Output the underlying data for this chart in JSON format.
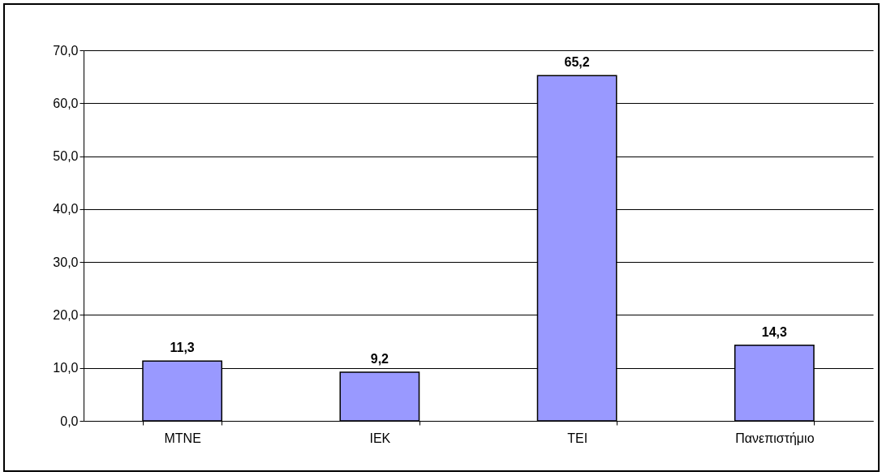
{
  "chart_data": {
    "type": "bar",
    "categories": [
      "ΜΤΝΕ",
      "ΙΕΚ",
      "ΤΕΙ",
      "Πανεπιστήμιο"
    ],
    "values": [
      11.3,
      9.2,
      65.2,
      14.3
    ],
    "value_labels": [
      "11,3",
      "9,2",
      "65,2",
      "14,3"
    ],
    "color": "#9999ff",
    "ylim": [
      0,
      70
    ],
    "yticks": [
      {
        "value": 0,
        "label": "0,0"
      },
      {
        "value": 10,
        "label": "10,0"
      },
      {
        "value": 20,
        "label": "20,0"
      },
      {
        "value": 30,
        "label": "30,0"
      },
      {
        "value": 40,
        "label": "40,0"
      },
      {
        "value": 50,
        "label": "50,0"
      },
      {
        "value": 60,
        "label": "60,0"
      },
      {
        "value": 70,
        "label": "70,0"
      }
    ],
    "grid": "y"
  }
}
